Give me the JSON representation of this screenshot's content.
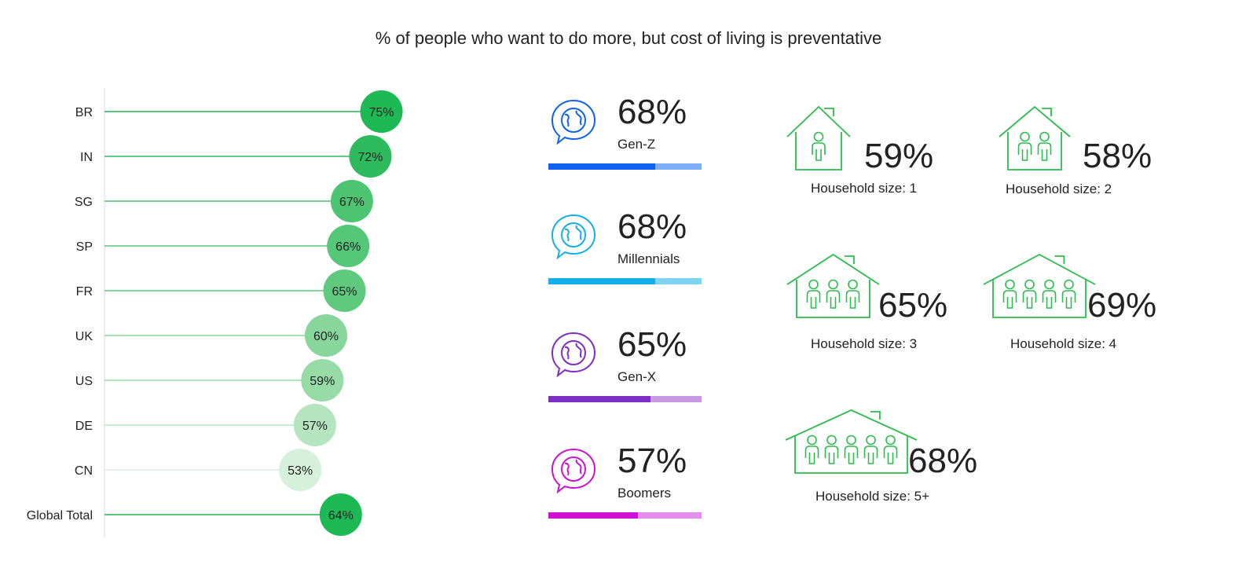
{
  "title": "% of people who want to do more, but cost of living is preventative",
  "chart_data": {
    "type": "lollipop",
    "categories": [
      "BR",
      "IN",
      "SG",
      "SP",
      "FR",
      "UK",
      "US",
      "DE",
      "CN",
      "Global Total"
    ],
    "values": [
      75,
      72,
      67,
      66,
      65,
      60,
      59,
      57,
      53,
      64
    ],
    "value_labels": [
      "75%",
      "72%",
      "67%",
      "66%",
      "65%",
      "60%",
      "59%",
      "57%",
      "53%",
      "64%"
    ],
    "xlim": [
      0,
      100
    ],
    "colors": [
      "#1db954",
      "#2dbb5d",
      "#4cc472",
      "#55c778",
      "#5fca7e",
      "#88d69c",
      "#97dba7",
      "#b4e5be",
      "#d6f1db",
      "#1db954"
    ]
  },
  "generations": [
    {
      "label": "Gen-Z",
      "value_text": "68%",
      "value": 68,
      "color_dark": "#0f62f0",
      "color_light": "#7eaef7",
      "icon": "globe-chat-icon"
    },
    {
      "label": "Millennials",
      "value_text": "68%",
      "value": 68,
      "color_dark": "#14aeea",
      "color_light": "#7fd4f4",
      "icon": "globe-chat-icon"
    },
    {
      "label": "Gen-X",
      "value_text": "65%",
      "value": 65,
      "color_dark": "#7d2ec4",
      "color_light": "#c89ae2",
      "icon": "globe-chat-icon"
    },
    {
      "label": "Boomers",
      "value_text": "57%",
      "value": 57,
      "color_dark": "#cc12d2",
      "color_light": "#e58ef0",
      "icon": "globe-chat-icon"
    }
  ],
  "households": [
    {
      "label": "Household size: 1",
      "value_text": "59%",
      "people": 1,
      "icon": "house-people-icon"
    },
    {
      "label": "Household size: 2",
      "value_text": "58%",
      "people": 2,
      "icon": "house-people-icon"
    },
    {
      "label": "Household size: 3",
      "value_text": "65%",
      "people": 3,
      "icon": "house-people-icon"
    },
    {
      "label": "Household size: 4",
      "value_text": "69%",
      "people": 4,
      "icon": "house-people-icon"
    },
    {
      "label": "Household size: 5+",
      "value_text": "68%",
      "people": 5,
      "icon": "house-people-icon"
    }
  ],
  "house_color": "#2dbb4d"
}
